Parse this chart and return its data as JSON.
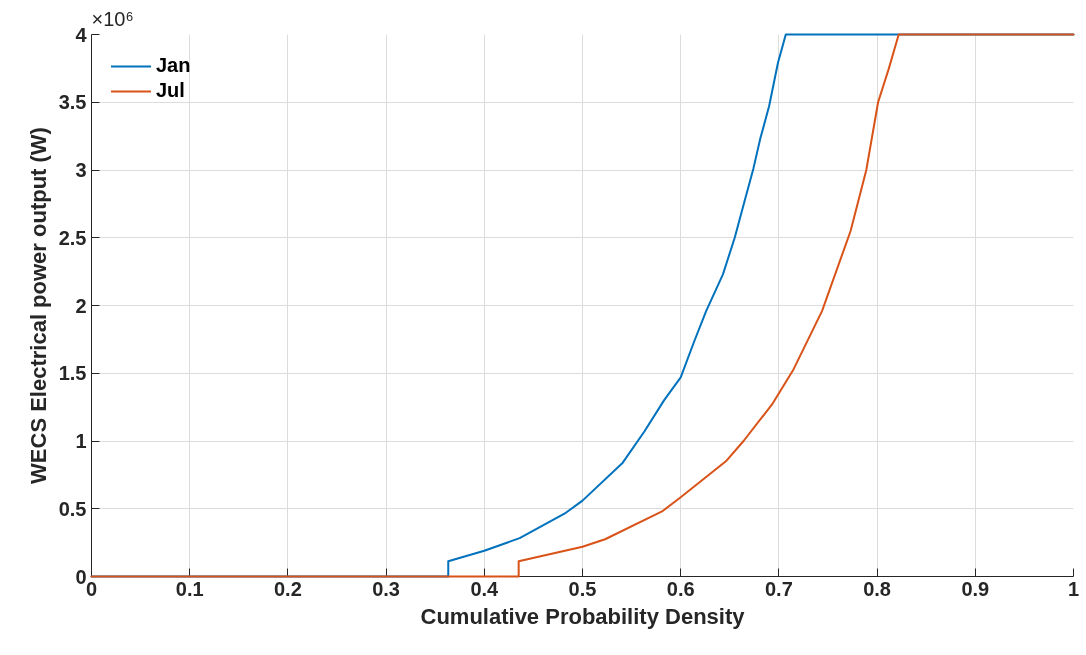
{
  "chart_data": {
    "type": "line",
    "xlabel": "Cumulative Probability Density",
    "ylabel": "WECS Electrical power output (W)",
    "annotations": [
      "×10⁶"
    ],
    "series": [
      {
        "name": "Jan",
        "color": "#0072bd",
        "x": [
          0,
          0.3633,
          0.3633,
          0.4,
          0.436,
          0.483,
          0.5,
          0.541,
          0.563,
          0.583,
          0.6,
          0.614,
          0.626,
          0.643,
          0.655,
          0.665,
          0.674,
          0.681,
          0.69,
          0.699,
          0.707,
          1
        ],
        "values": [
          0,
          0,
          0.113,
          0.19,
          0.283,
          0.47,
          0.56,
          0.84,
          1.07,
          1.3,
          1.47,
          1.74,
          1.96,
          2.23,
          2.5,
          2.77,
          3.01,
          3.23,
          3.47,
          3.79,
          4,
          4
        ]
      },
      {
        "name": "Jul",
        "color": "#d95319",
        "x": [
          0,
          0.435,
          0.435,
          0.5,
          0.523,
          0.581,
          0.6,
          0.646,
          0.664,
          0.693,
          0.715,
          0.744,
          0.773,
          0.789,
          0.801,
          0.812,
          0.822,
          1
        ],
        "values": [
          0,
          0,
          0.113,
          0.22,
          0.275,
          0.48,
          0.585,
          0.85,
          1.0,
          1.27,
          1.53,
          1.96,
          2.55,
          3.0,
          3.5,
          3.75,
          4,
          4
        ]
      }
    ],
    "xlim": [
      0,
      1
    ],
    "ylim": [
      0,
      4
    ],
    "xticks": [
      0,
      0.1,
      0.2,
      0.3,
      0.4,
      0.5,
      0.6,
      0.7,
      0.8,
      0.9,
      1
    ],
    "yticks": [
      0,
      0.5,
      1,
      1.5,
      2,
      2.5,
      3,
      3.5,
      4
    ],
    "grid": true,
    "legend": "top left",
    "marker": "none",
    "line_style": "solid"
  }
}
